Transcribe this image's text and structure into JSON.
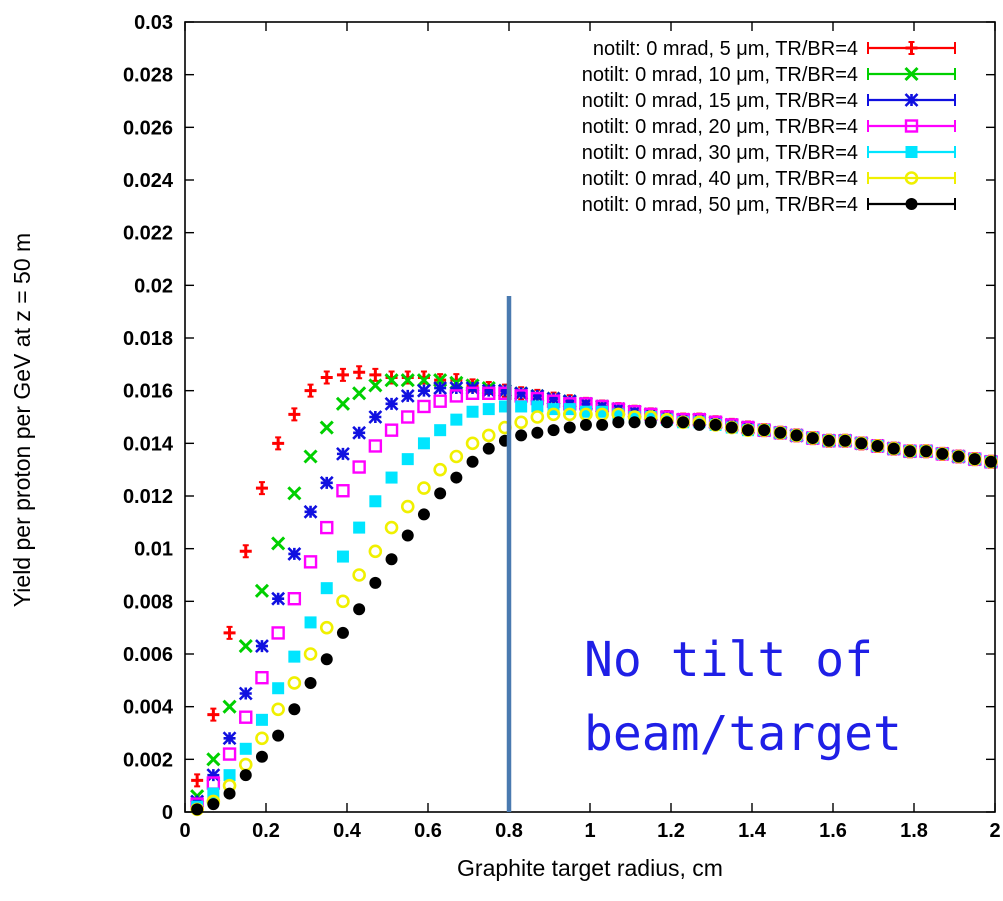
{
  "chart_data": {
    "type": "scatter",
    "xlabel": "Graphite target radius, cm",
    "ylabel": "Yield per proton per GeV at z = 50 m",
    "xlim": [
      0,
      2
    ],
    "ylim": [
      0,
      0.03
    ],
    "x_ticks": [
      "0",
      "0.2",
      "0.4",
      "0.6",
      "0.8",
      "1",
      "1.2",
      "1.4",
      "1.6",
      "1.8",
      "2"
    ],
    "y_ticks": [
      "0",
      "0.002",
      "0.004",
      "0.006",
      "0.008",
      "0.01",
      "0.012",
      "0.014",
      "0.016",
      "0.018",
      "0.02",
      "0.022",
      "0.024",
      "0.026",
      "0.028",
      "0.03"
    ],
    "legend_position": "top-right",
    "grid": false,
    "vertical_line_x": 0.8,
    "vertical_line_color": "#4a7ab0",
    "annotation": [
      "No tilt of",
      "beam/target"
    ],
    "annotation_color": "#1f1fe6",
    "series": [
      {
        "name": "notilt: 0 mrad, 5 μm, TR/BR=4",
        "color": "#ff0000",
        "marker": "plus",
        "x": [
          0.03,
          0.07,
          0.11,
          0.15,
          0.19,
          0.23,
          0.27,
          0.31,
          0.35,
          0.39,
          0.43,
          0.47,
          0.51,
          0.55,
          0.59,
          0.63,
          0.67,
          0.71,
          0.75,
          0.79,
          0.83,
          0.87,
          0.91,
          0.95,
          0.99,
          1.03,
          1.07,
          1.11,
          1.15,
          1.19,
          1.23,
          1.27,
          1.31,
          1.35,
          1.39,
          1.43,
          1.47,
          1.51,
          1.55,
          1.59,
          1.63,
          1.67,
          1.71,
          1.75,
          1.79,
          1.83,
          1.87,
          1.91,
          1.95,
          1.99
        ],
        "y": [
          0.0012,
          0.0037,
          0.0068,
          0.0099,
          0.0123,
          0.014,
          0.0151,
          0.016,
          0.0165,
          0.0166,
          0.0167,
          0.0166,
          0.0165,
          0.0165,
          0.0165,
          0.0164,
          0.0164,
          0.0162,
          0.0161,
          0.016,
          0.0159,
          0.0158,
          0.0157,
          0.0156,
          0.0155,
          0.0154,
          0.0153,
          0.0152,
          0.0151,
          0.015,
          0.0149,
          0.0149,
          0.0148,
          0.0147,
          0.0146,
          0.0145,
          0.0144,
          0.0143,
          0.0142,
          0.0141,
          0.0141,
          0.014,
          0.0139,
          0.0138,
          0.0137,
          0.0137,
          0.0136,
          0.0135,
          0.0134,
          0.0133
        ]
      },
      {
        "name": "notilt: 0 mrad, 10 μm, TR/BR=4",
        "color": "#00d000",
        "marker": "x",
        "x": [
          0.03,
          0.07,
          0.11,
          0.15,
          0.19,
          0.23,
          0.27,
          0.31,
          0.35,
          0.39,
          0.43,
          0.47,
          0.51,
          0.55,
          0.59,
          0.63,
          0.67,
          0.71,
          0.75,
          0.79,
          0.83,
          0.87,
          0.91,
          0.95,
          0.99,
          1.03,
          1.07,
          1.11,
          1.15,
          1.19,
          1.23,
          1.27,
          1.31,
          1.35,
          1.39,
          1.43,
          1.47,
          1.51,
          1.55,
          1.59,
          1.63,
          1.67,
          1.71,
          1.75,
          1.79,
          1.83,
          1.87,
          1.91,
          1.95,
          1.99
        ],
        "y": [
          0.0006,
          0.002,
          0.004,
          0.0063,
          0.0084,
          0.0102,
          0.0121,
          0.0135,
          0.0146,
          0.0155,
          0.0159,
          0.0162,
          0.0164,
          0.0164,
          0.0164,
          0.0164,
          0.0163,
          0.0162,
          0.0161,
          0.016,
          0.0159,
          0.0158,
          0.0157,
          0.0156,
          0.0155,
          0.0154,
          0.0153,
          0.0152,
          0.0151,
          0.015,
          0.0149,
          0.0149,
          0.0148,
          0.0147,
          0.0146,
          0.0145,
          0.0144,
          0.0143,
          0.0142,
          0.0141,
          0.0141,
          0.014,
          0.0139,
          0.0138,
          0.0137,
          0.0137,
          0.0136,
          0.0135,
          0.0134,
          0.0133
        ]
      },
      {
        "name": "notilt: 0 mrad, 15 μm, TR/BR=4",
        "color": "#1010e0",
        "marker": "star",
        "x": [
          0.03,
          0.07,
          0.11,
          0.15,
          0.19,
          0.23,
          0.27,
          0.31,
          0.35,
          0.39,
          0.43,
          0.47,
          0.51,
          0.55,
          0.59,
          0.63,
          0.67,
          0.71,
          0.75,
          0.79,
          0.83,
          0.87,
          0.91,
          0.95,
          0.99,
          1.03,
          1.07,
          1.11,
          1.15,
          1.19,
          1.23,
          1.27,
          1.31,
          1.35,
          1.39,
          1.43,
          1.47,
          1.51,
          1.55,
          1.59,
          1.63,
          1.67,
          1.71,
          1.75,
          1.79,
          1.83,
          1.87,
          1.91,
          1.95,
          1.99
        ],
        "y": [
          0.0004,
          0.0014,
          0.0028,
          0.0045,
          0.0063,
          0.0081,
          0.0098,
          0.0114,
          0.0125,
          0.0136,
          0.0144,
          0.015,
          0.0155,
          0.0158,
          0.016,
          0.0161,
          0.0161,
          0.0161,
          0.016,
          0.016,
          0.0159,
          0.0158,
          0.0157,
          0.0156,
          0.0155,
          0.0154,
          0.0153,
          0.0152,
          0.0151,
          0.015,
          0.0149,
          0.0149,
          0.0148,
          0.0147,
          0.0146,
          0.0145,
          0.0144,
          0.0143,
          0.0142,
          0.0141,
          0.0141,
          0.014,
          0.0139,
          0.0138,
          0.0137,
          0.0137,
          0.0136,
          0.0135,
          0.0134,
          0.0133
        ]
      },
      {
        "name": "notilt: 0 mrad, 20 μm, TR/BR=4",
        "color": "#ff00ff",
        "marker": "square-open",
        "x": [
          0.03,
          0.07,
          0.11,
          0.15,
          0.19,
          0.23,
          0.27,
          0.31,
          0.35,
          0.39,
          0.43,
          0.47,
          0.51,
          0.55,
          0.59,
          0.63,
          0.67,
          0.71,
          0.75,
          0.79,
          0.83,
          0.87,
          0.91,
          0.95,
          0.99,
          1.03,
          1.07,
          1.11,
          1.15,
          1.19,
          1.23,
          1.27,
          1.31,
          1.35,
          1.39,
          1.43,
          1.47,
          1.51,
          1.55,
          1.59,
          1.63,
          1.67,
          1.71,
          1.75,
          1.79,
          1.83,
          1.87,
          1.91,
          1.95,
          1.99
        ],
        "y": [
          0.0003,
          0.0011,
          0.0022,
          0.0036,
          0.0051,
          0.0068,
          0.0081,
          0.0095,
          0.0108,
          0.0122,
          0.0131,
          0.0139,
          0.0145,
          0.015,
          0.0154,
          0.0156,
          0.0158,
          0.0159,
          0.0159,
          0.0159,
          0.0158,
          0.0157,
          0.0156,
          0.0155,
          0.0155,
          0.0154,
          0.0153,
          0.0152,
          0.0151,
          0.015,
          0.0149,
          0.0149,
          0.0148,
          0.0147,
          0.0146,
          0.0145,
          0.0144,
          0.0143,
          0.0142,
          0.0141,
          0.0141,
          0.014,
          0.0139,
          0.0138,
          0.0137,
          0.0137,
          0.0136,
          0.0135,
          0.0134,
          0.0133
        ]
      },
      {
        "name": "notilt: 0 mrad, 30 μm, TR/BR=4",
        "color": "#00e5ff",
        "marker": "square",
        "x": [
          0.03,
          0.07,
          0.11,
          0.15,
          0.19,
          0.23,
          0.27,
          0.31,
          0.35,
          0.39,
          0.43,
          0.47,
          0.51,
          0.55,
          0.59,
          0.63,
          0.67,
          0.71,
          0.75,
          0.79,
          0.83,
          0.87,
          0.91,
          0.95,
          0.99,
          1.03,
          1.07,
          1.11,
          1.15,
          1.19,
          1.23,
          1.27,
          1.31,
          1.35,
          1.39,
          1.43,
          1.47,
          1.51,
          1.55,
          1.59,
          1.63,
          1.67,
          1.71,
          1.75,
          1.79,
          1.83,
          1.87,
          1.91,
          1.95,
          1.99
        ],
        "y": [
          0.0002,
          0.0007,
          0.0014,
          0.0024,
          0.0035,
          0.0047,
          0.0059,
          0.0072,
          0.0085,
          0.0097,
          0.0108,
          0.0118,
          0.0127,
          0.0134,
          0.014,
          0.0145,
          0.0149,
          0.0152,
          0.0153,
          0.0154,
          0.0154,
          0.0154,
          0.0153,
          0.0153,
          0.0152,
          0.0152,
          0.0151,
          0.015,
          0.015,
          0.0149,
          0.0148,
          0.0148,
          0.0147,
          0.0146,
          0.0145,
          0.0145,
          0.0144,
          0.0143,
          0.0142,
          0.0141,
          0.0141,
          0.014,
          0.0139,
          0.0138,
          0.0137,
          0.0137,
          0.0136,
          0.0135,
          0.0134,
          0.0133
        ]
      },
      {
        "name": "notilt: 0 mrad, 40 μm, TR/BR=4",
        "color": "#f0f000",
        "marker": "circle-open",
        "x": [
          0.03,
          0.07,
          0.11,
          0.15,
          0.19,
          0.23,
          0.27,
          0.31,
          0.35,
          0.39,
          0.43,
          0.47,
          0.51,
          0.55,
          0.59,
          0.63,
          0.67,
          0.71,
          0.75,
          0.79,
          0.83,
          0.87,
          0.91,
          0.95,
          0.99,
          1.03,
          1.07,
          1.11,
          1.15,
          1.19,
          1.23,
          1.27,
          1.31,
          1.35,
          1.39,
          1.43,
          1.47,
          1.51,
          1.55,
          1.59,
          1.63,
          1.67,
          1.71,
          1.75,
          1.79,
          1.83,
          1.87,
          1.91,
          1.95,
          1.99
        ],
        "y": [
          0.0001,
          0.0004,
          0.001,
          0.0018,
          0.0028,
          0.0039,
          0.0049,
          0.006,
          0.007,
          0.008,
          0.009,
          0.0099,
          0.0108,
          0.0116,
          0.0123,
          0.013,
          0.0135,
          0.014,
          0.0143,
          0.0146,
          0.0148,
          0.015,
          0.0151,
          0.0151,
          0.0151,
          0.0151,
          0.0151,
          0.015,
          0.015,
          0.0149,
          0.0148,
          0.0148,
          0.0147,
          0.0146,
          0.0145,
          0.0145,
          0.0144,
          0.0143,
          0.0142,
          0.0141,
          0.0141,
          0.014,
          0.0139,
          0.0138,
          0.0137,
          0.0137,
          0.0136,
          0.0135,
          0.0134,
          0.0133
        ]
      },
      {
        "name": "notilt: 0 mrad, 50 μm, TR/BR=4",
        "color": "#000000",
        "marker": "circle",
        "x": [
          0.03,
          0.07,
          0.11,
          0.15,
          0.19,
          0.23,
          0.27,
          0.31,
          0.35,
          0.39,
          0.43,
          0.47,
          0.51,
          0.55,
          0.59,
          0.63,
          0.67,
          0.71,
          0.75,
          0.79,
          0.83,
          0.87,
          0.91,
          0.95,
          0.99,
          1.03,
          1.07,
          1.11,
          1.15,
          1.19,
          1.23,
          1.27,
          1.31,
          1.35,
          1.39,
          1.43,
          1.47,
          1.51,
          1.55,
          1.59,
          1.63,
          1.67,
          1.71,
          1.75,
          1.79,
          1.83,
          1.87,
          1.91,
          1.95,
          1.99
        ],
        "y": [
          0.0001,
          0.0003,
          0.0007,
          0.0014,
          0.0021,
          0.0029,
          0.0039,
          0.0049,
          0.0058,
          0.0068,
          0.0077,
          0.0087,
          0.0096,
          0.0105,
          0.0113,
          0.0121,
          0.0127,
          0.0133,
          0.0138,
          0.0141,
          0.0143,
          0.0144,
          0.0145,
          0.0146,
          0.0147,
          0.0147,
          0.0148,
          0.0148,
          0.0148,
          0.0148,
          0.0148,
          0.0147,
          0.0147,
          0.0146,
          0.0145,
          0.0145,
          0.0144,
          0.0143,
          0.0142,
          0.0141,
          0.0141,
          0.014,
          0.0139,
          0.0138,
          0.0137,
          0.0137,
          0.0136,
          0.0135,
          0.0134,
          0.0133
        ]
      }
    ]
  }
}
